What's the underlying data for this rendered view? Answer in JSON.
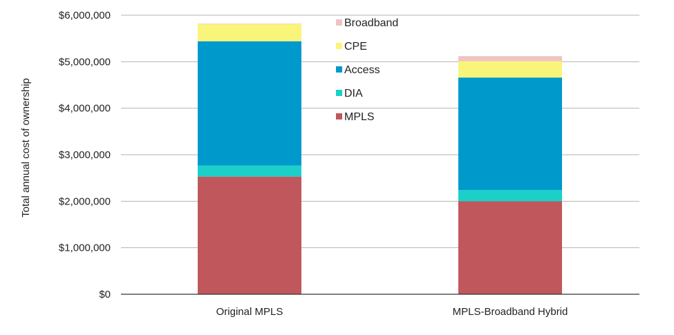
{
  "chart_data": {
    "type": "bar",
    "stacked": true,
    "title": "",
    "xlabel": "",
    "ylabel": "Total annual cost of ownership",
    "categories": [
      "Original MPLS",
      "MPLS-Broadband Hybrid"
    ],
    "series": [
      {
        "name": "MPLS",
        "color": "#c0575c",
        "values": [
          2530000,
          2000000
        ]
      },
      {
        "name": "DIA",
        "color": "#1ccfc9",
        "values": [
          240000,
          240000
        ]
      },
      {
        "name": "Access",
        "color": "#0099cc",
        "values": [
          2670000,
          2420000
        ]
      },
      {
        "name": "CPE",
        "color": "#f9f57a",
        "values": [
          370000,
          350000
        ]
      },
      {
        "name": "Broadband",
        "color": "#f0c3c4",
        "values": [
          10000,
          110000
        ]
      }
    ],
    "ylim": [
      0,
      6000000
    ],
    "yticks": [
      0,
      1000000,
      2000000,
      3000000,
      4000000,
      5000000,
      6000000
    ],
    "ytick_labels": [
      "$0",
      "$1,000,000",
      "$2,000,000",
      "$3,000,000",
      "$4,000,000",
      "$5,000,000",
      "$6,000,000"
    ],
    "legend_order": [
      "Broadband",
      "CPE",
      "Access",
      "DIA",
      "MPLS"
    ],
    "legend_position": "top-center",
    "grid": true
  }
}
